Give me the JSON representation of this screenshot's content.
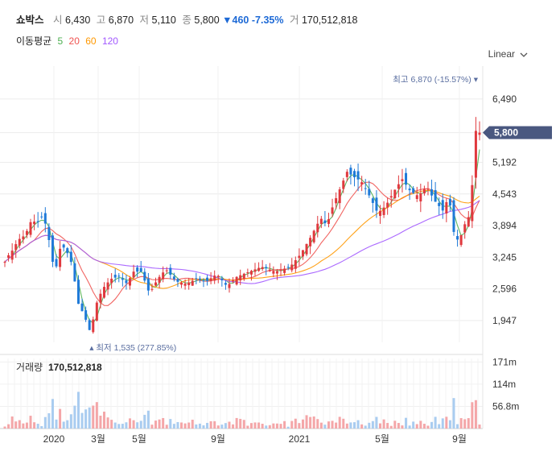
{
  "header": {
    "name": "쇼박스",
    "open_label": "시",
    "open": "6,430",
    "high_label": "고",
    "high": "6,870",
    "low_label": "저",
    "low": "5,110",
    "close_label": "종",
    "close": "5,800",
    "change": "▼460",
    "change_pct": "-7.35%",
    "volume_label": "거",
    "volume": "170,512,818"
  },
  "ma": {
    "label": "이동평균",
    "periods": [
      "5",
      "20",
      "60",
      "120"
    ],
    "colors": [
      "#4caf50",
      "#ef5350",
      "#ff9800",
      "#a259ff"
    ]
  },
  "scale_select": {
    "value": "Linear"
  },
  "volume_panel": {
    "label": "거래량",
    "value": "170,512,818"
  },
  "colors": {
    "up": "#e0393e",
    "down": "#1f7ad8",
    "current_badge": "#4a5880",
    "marker": "#5a6ea0"
  },
  "chart_data": [
    {
      "type": "candlestick",
      "title": "",
      "x_ticks": [
        "2020",
        "3월",
        "5월",
        "9월",
        "2021",
        "5월",
        "9월"
      ],
      "y_ticks": [
        6490,
        5800,
        5192,
        4543,
        3894,
        3245,
        2596,
        1947
      ],
      "y_tick_labels": [
        "6,490",
        "5,800",
        "5,192",
        "4,543",
        "3,894",
        "3,245",
        "2,596",
        "1,947"
      ],
      "ylim": [
        1500,
        7000
      ],
      "current_price": 5800,
      "current_label": "5,800",
      "high_marker": {
        "price": 6870,
        "label_prefix": "최고",
        "label": "6,870 (-15.57%)"
      },
      "low_marker": {
        "price": 1535,
        "label_prefix": "최저",
        "label": "1,535 (277.85%)"
      },
      "series": [
        {
          "name": "5",
          "color": "#4caf50"
        },
        {
          "name": "20",
          "color": "#ef5350"
        },
        {
          "name": "60",
          "color": "#ff9800"
        },
        {
          "name": "120",
          "color": "#a259ff"
        }
      ]
    },
    {
      "type": "bar",
      "title": "",
      "y_ticks": [
        171,
        114,
        56.8
      ],
      "y_tick_labels": [
        "171m",
        "114m",
        "56.8m"
      ],
      "ylim": [
        0,
        180
      ],
      "unit": "m",
      "last_value": 170.5
    }
  ]
}
